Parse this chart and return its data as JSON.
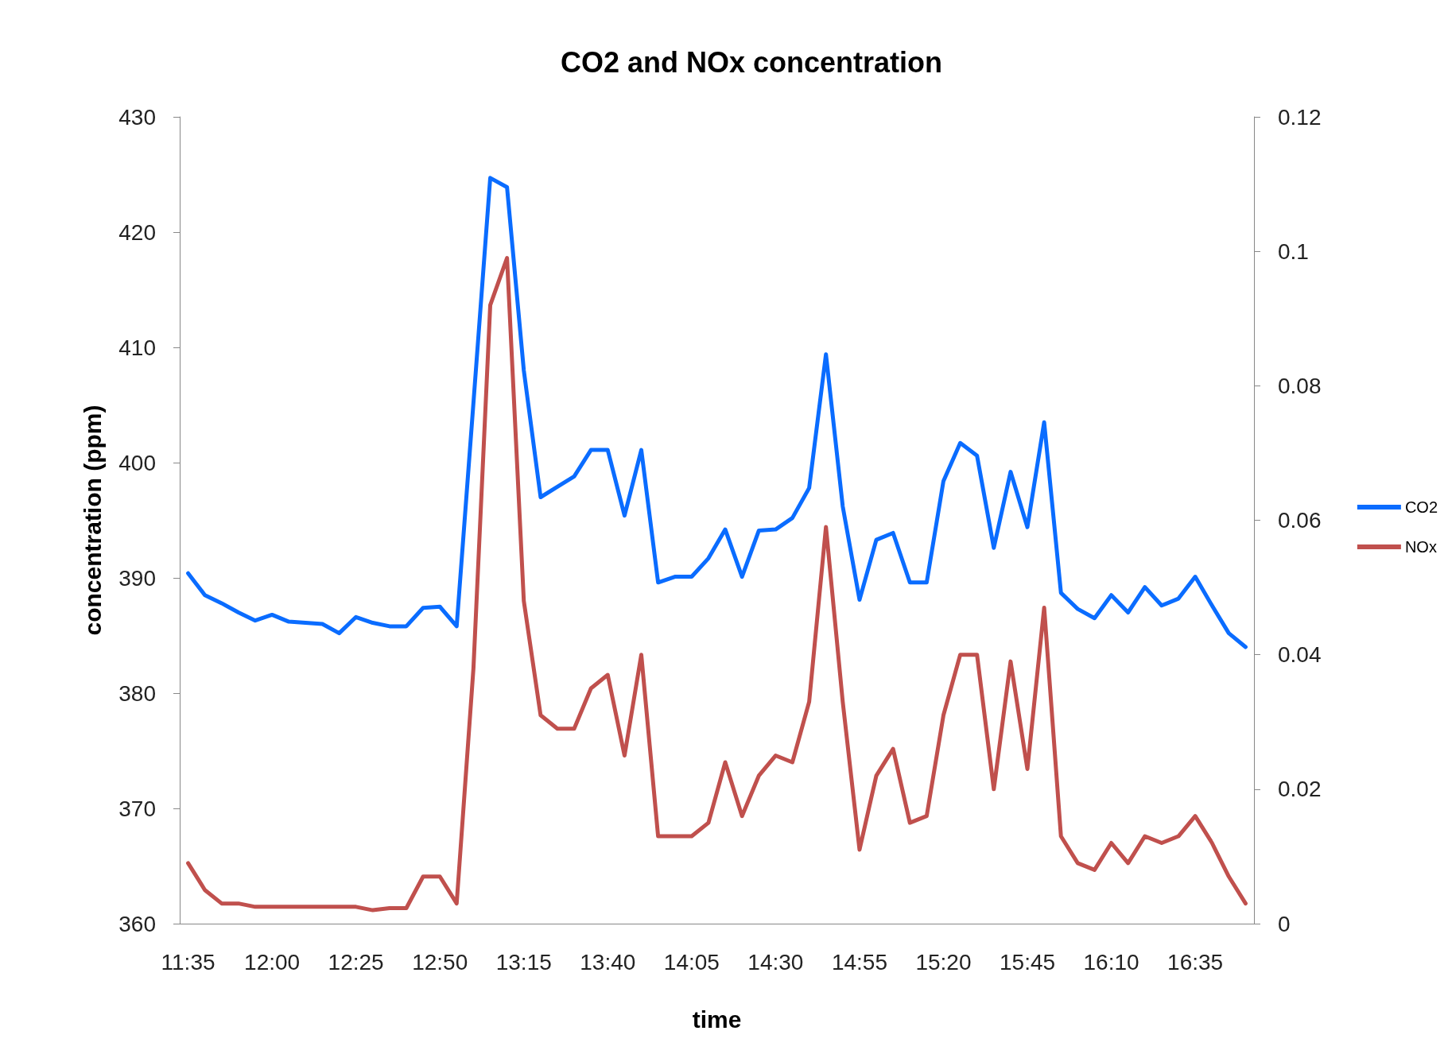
{
  "chart_data": {
    "type": "line",
    "title": "CO2 and NOx concentration",
    "xlabel": "time",
    "ylabel": "concentration (ppm)",
    "categories": [
      "11:35",
      null,
      null,
      null,
      null,
      "12:00",
      null,
      null,
      null,
      null,
      "12:25",
      null,
      null,
      null,
      null,
      "12:50",
      null,
      null,
      null,
      null,
      "13:15",
      null,
      null,
      null,
      null,
      "13:40",
      null,
      null,
      null,
      null,
      "14:05",
      null,
      null,
      null,
      null,
      "14:30",
      null,
      null,
      null,
      null,
      "14:55",
      null,
      null,
      null,
      null,
      "15:20",
      null,
      null,
      null,
      null,
      "15:45",
      null,
      null,
      null,
      null,
      "16:10",
      null,
      null,
      null,
      null,
      "16:35",
      null,
      null,
      null
    ],
    "series": [
      {
        "name": "CO2",
        "color": "#0a6cff",
        "values": [
          390.4,
          388.5,
          387.8,
          387,
          386.3,
          386.8,
          386.2,
          386.1,
          386,
          385.2,
          386.6,
          386.1,
          385.8,
          385.8,
          387.4,
          387.5,
          385.8,
          405.2,
          424.7,
          423.9,
          408,
          397,
          397.9,
          398.8,
          401.1,
          401.1,
          395.4,
          401.1,
          389.6,
          390.1,
          390.1,
          391.7,
          394.2,
          390.1,
          394.1,
          394.2,
          395.2,
          397.8,
          409.4,
          396.2,
          388.1,
          393.3,
          393.9,
          389.6,
          389.6,
          398.4,
          401.7,
          400.6,
          392.6,
          399.2,
          394.4,
          403.5,
          388.7,
          387.3,
          386.5,
          388.5,
          387,
          389.2,
          387.6,
          388.2,
          390.1,
          387.6,
          385.2,
          384
        ]
      },
      {
        "name": "NOx",
        "color": "#c0504d",
        "axis": "y2",
        "values": [
          0.009,
          0.005,
          0.003,
          0.003,
          0.0025,
          0.0025,
          0.0025,
          0.0025,
          0.0025,
          0.0025,
          0.0025,
          0.002,
          0.0023,
          0.0023,
          0.007,
          0.007,
          0.003,
          0.038,
          0.092,
          0.099,
          0.048,
          0.031,
          0.029,
          0.029,
          0.035,
          0.037,
          0.025,
          0.04,
          0.013,
          0.013,
          0.013,
          0.015,
          0.024,
          0.016,
          0.022,
          0.025,
          0.024,
          0.033,
          0.059,
          0.033,
          0.011,
          0.022,
          0.026,
          0.015,
          0.016,
          0.031,
          0.04,
          0.04,
          0.02,
          0.039,
          0.023,
          0.047,
          0.013,
          0.009,
          0.008,
          0.012,
          0.009,
          0.013,
          0.012,
          0.013,
          0.016,
          0.012,
          0.007,
          0.003
        ]
      }
    ],
    "ylim": [
      360,
      430
    ],
    "yticks": [
      360,
      370,
      380,
      390,
      400,
      410,
      420,
      430
    ],
    "y2lim": [
      0,
      0.12
    ],
    "y2ticks": [
      0,
      0.02,
      0.04,
      0.06,
      0.08,
      0.1,
      0.12
    ],
    "grid": false,
    "legend": "right",
    "marker": "none",
    "line_style": "solid"
  }
}
